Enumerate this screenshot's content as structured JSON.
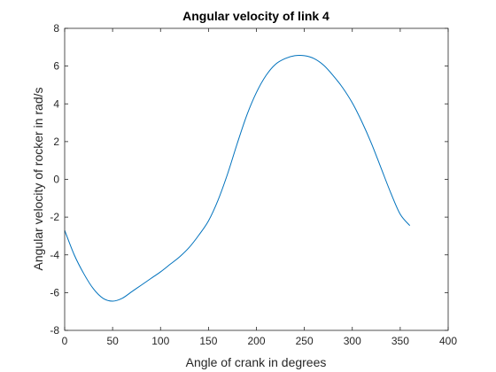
{
  "chart_data": {
    "type": "line",
    "title": "Angular velocity of link 4",
    "xlabel": "Angle of crank in degrees",
    "ylabel": "Angular velocity of rocker in rad/s",
    "xlim": [
      0,
      400
    ],
    "ylim": [
      -8,
      8
    ],
    "xticks": [
      0,
      50,
      100,
      150,
      200,
      250,
      300,
      350,
      400
    ],
    "yticks": [
      -8,
      -6,
      -4,
      -2,
      0,
      2,
      4,
      6,
      8
    ],
    "xtick_labels": [
      "0",
      "50",
      "100",
      "150",
      "200",
      "250",
      "300",
      "350",
      "400"
    ],
    "ytick_labels": [
      "-8",
      "-6",
      "-4",
      "-2",
      "0",
      "2",
      "4",
      "6",
      "8"
    ],
    "grid": false,
    "line_color": "#0072bd",
    "series": [
      {
        "x": [
          0,
          10,
          20,
          30,
          40,
          50,
          60,
          70,
          80,
          90,
          100,
          110,
          120,
          130,
          140,
          150,
          160,
          170,
          180,
          190,
          200,
          210,
          220,
          230,
          240,
          250,
          260,
          270,
          280,
          290,
          300,
          310,
          320,
          330,
          340,
          350,
          360
        ],
        "values": [
          -2.7,
          -4.0,
          -5.0,
          -5.8,
          -6.3,
          -6.45,
          -6.3,
          -5.95,
          -5.6,
          -5.25,
          -4.9,
          -4.5,
          -4.1,
          -3.6,
          -2.95,
          -2.2,
          -1.1,
          0.3,
          1.9,
          3.4,
          4.6,
          5.5,
          6.1,
          6.4,
          6.55,
          6.55,
          6.4,
          6.05,
          5.5,
          4.85,
          4.05,
          3.05,
          1.9,
          0.6,
          -0.7,
          -1.85,
          -2.45
        ]
      }
    ]
  }
}
